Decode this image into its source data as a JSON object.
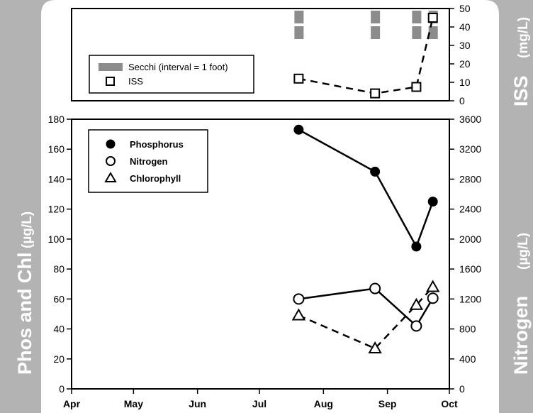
{
  "chart_data": [
    {
      "type": "scatter",
      "panel": "top",
      "ylabel_main": "ISS",
      "ylabel_unit": "(mg/L)",
      "y_ticks": [
        0,
        10,
        20,
        30,
        40,
        50
      ],
      "ylim": [
        0,
        50
      ],
      "legend": {
        "secchi_label": "Secchi (interval = 1 foot)",
        "iss_label": "ISS"
      },
      "secchi": [
        {
          "date": "2024-07-20",
          "depth_marks": 2
        },
        {
          "date": "2024-08-26",
          "depth_marks": 2
        },
        {
          "date": "2024-09-15",
          "depth_marks": 2
        },
        {
          "date": "2024-09-23",
          "depth_marks": 2
        }
      ],
      "series": [
        {
          "name": "ISS",
          "points": [
            {
              "date": "2024-07-20",
              "value": 12
            },
            {
              "date": "2024-08-26",
              "value": 4
            },
            {
              "date": "2024-09-15",
              "value": 7.5
            },
            {
              "date": "2024-09-23",
              "value": 45
            }
          ]
        }
      ]
    },
    {
      "type": "line",
      "panel": "bottom",
      "x_ticks": [
        "Apr",
        "May",
        "Jun",
        "Jul",
        "Aug",
        "Sep",
        "Oct"
      ],
      "x_tick_dates": [
        "2024-04-01",
        "2024-05-01",
        "2024-06-01",
        "2024-07-01",
        "2024-08-01",
        "2024-09-01",
        "2024-10-01"
      ],
      "ylabel_left_main": "Phos and Chl",
      "ylabel_left_unit": "(µg/L)",
      "ylabel_right_main": "Nitrogen",
      "ylabel_right_unit": "(µg/L)",
      "y_left_ticks": [
        0,
        20,
        40,
        60,
        80,
        100,
        120,
        140,
        160,
        180
      ],
      "y_left_lim": [
        0,
        180
      ],
      "y_right_ticks": [
        0,
        400,
        800,
        1200,
        1600,
        2000,
        2400,
        2800,
        3200,
        3600
      ],
      "y_right_lim": [
        0,
        3600
      ],
      "legend": {
        "phosphorus": "Phosphorus",
        "nitrogen": "Nitrogen",
        "chlorophyll": "Chlorophyll"
      },
      "series": [
        {
          "name": "Phosphorus",
          "axis": "left",
          "points": [
            {
              "date": "2024-07-20",
              "value": 173
            },
            {
              "date": "2024-08-26",
              "value": 145
            },
            {
              "date": "2024-09-15",
              "value": 95
            },
            {
              "date": "2024-09-23",
              "value": 125
            }
          ]
        },
        {
          "name": "Nitrogen",
          "axis": "right",
          "points": [
            {
              "date": "2024-07-20",
              "value": 1200
            },
            {
              "date": "2024-08-26",
              "value": 1340
            },
            {
              "date": "2024-09-15",
              "value": 840
            },
            {
              "date": "2024-09-23",
              "value": 1210
            }
          ]
        },
        {
          "name": "Chlorophyll",
          "axis": "left",
          "points": [
            {
              "date": "2024-07-20",
              "value": 49
            },
            {
              "date": "2024-08-26",
              "value": 27
            },
            {
              "date": "2024-09-15",
              "value": 56
            },
            {
              "date": "2024-09-23",
              "value": 68
            }
          ]
        }
      ]
    }
  ],
  "colors": {
    "frame": "#b3b3b3",
    "secchi": "#8c8c8c",
    "side_label": "#ffffff",
    "ink": "#000000"
  }
}
